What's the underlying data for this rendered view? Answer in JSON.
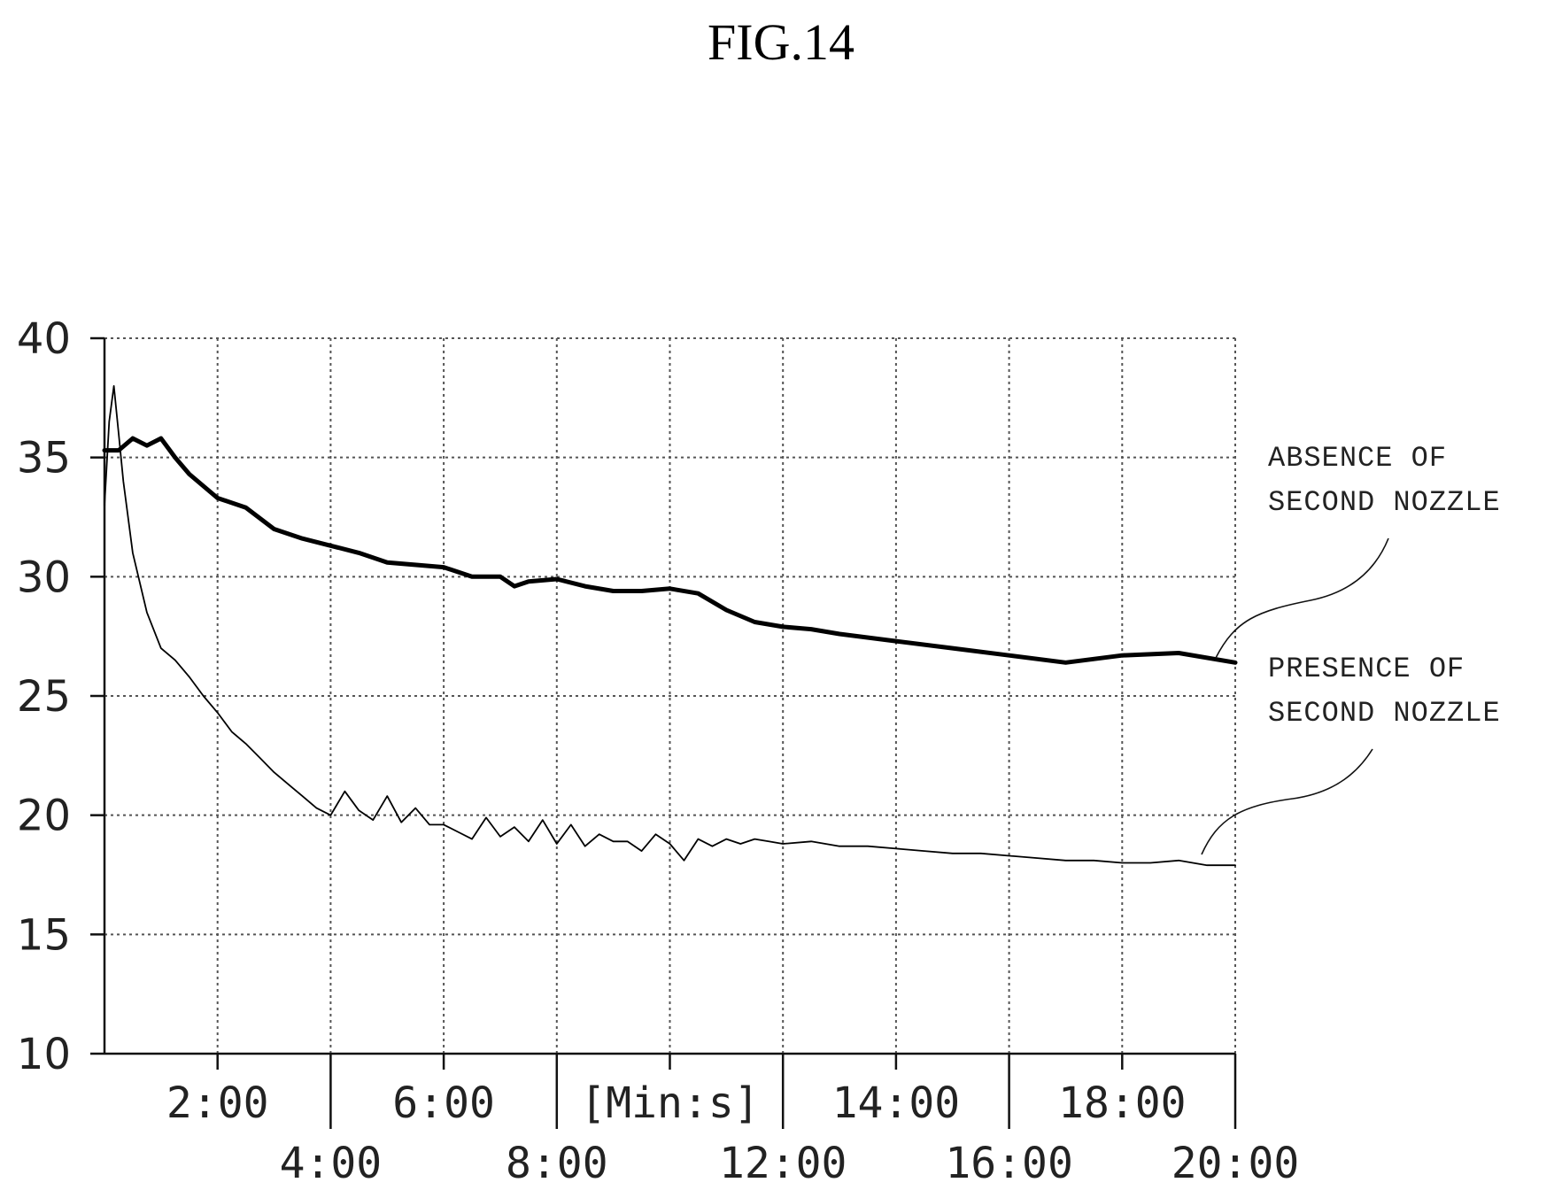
{
  "figure_label": "FIG.14",
  "chart_data": {
    "type": "line",
    "title": "",
    "xlabel": "[Min:s]",
    "ylabel": "",
    "xlim_minutes": [
      0,
      20
    ],
    "ylim": [
      10,
      40
    ],
    "y_ticks": [
      "10",
      "15",
      "20",
      "25",
      "30",
      "35",
      "40"
    ],
    "x_ticks_upper": [
      "2:00",
      "6:00",
      "[Min:s]",
      "14:00",
      "18:00"
    ],
    "x_ticks_lower": [
      "4:00",
      "8:00",
      "12:00",
      "16:00",
      "20:00"
    ],
    "grid": true,
    "annotations": [
      {
        "line1": "ABSENCE OF",
        "line2": "SECOND NOZZLE",
        "series": 0
      },
      {
        "line1": "PRESENCE OF",
        "line2": "SECOND NOZZLE",
        "series": 1
      }
    ],
    "series": [
      {
        "name": "",
        "color": "#000000",
        "x": [
          "0:00",
          "0:15",
          "0:30",
          "0:45",
          "1:00",
          "1:15",
          "1:30",
          "2:00",
          "2:30",
          "3:00",
          "3:30",
          "4:00",
          "4:30",
          "5:00",
          "6:00",
          "6:30",
          "7:00",
          "7:15",
          "7:30",
          "8:00",
          "8:30",
          "9:00",
          "9:30",
          "10:00",
          "10:30",
          "11:00",
          "11:30",
          "12:00",
          "12:30",
          "13:00",
          "14:00",
          "15:00",
          "16:00",
          "17:00",
          "18:00",
          "19:00",
          "20:00"
        ],
        "values": [
          35.3,
          35.3,
          35.8,
          35.5,
          35.8,
          35.0,
          34.3,
          33.3,
          32.9,
          32.0,
          31.6,
          31.3,
          31.0,
          30.6,
          30.4,
          30.0,
          30.0,
          29.6,
          29.8,
          29.9,
          29.6,
          29.4,
          29.4,
          29.5,
          29.3,
          28.6,
          28.1,
          27.9,
          27.8,
          27.6,
          27.3,
          27.0,
          26.7,
          26.4,
          26.7,
          26.8,
          26.4
        ]
      },
      {
        "name": "",
        "color": "#000000",
        "x": [
          "0:00",
          "0:05",
          "0:10",
          "0:15",
          "0:20",
          "0:25",
          "0:30",
          "0:45",
          "1:00",
          "1:15",
          "1:30",
          "1:45",
          "2:00",
          "2:15",
          "2:30",
          "2:45",
          "3:00",
          "3:15",
          "3:30",
          "3:45",
          "4:00",
          "4:15",
          "4:30",
          "4:45",
          "5:00",
          "5:15",
          "5:30",
          "5:45",
          "6:00",
          "6:15",
          "6:30",
          "6:45",
          "7:00",
          "7:15",
          "7:30",
          "7:45",
          "8:00",
          "8:15",
          "8:30",
          "8:45",
          "9:00",
          "9:15",
          "9:30",
          "9:45",
          "10:00",
          "10:15",
          "10:30",
          "10:45",
          "11:00",
          "11:15",
          "11:30",
          "11:45",
          "12:00",
          "12:30",
          "13:00",
          "13:30",
          "14:00",
          "14:30",
          "15:00",
          "15:30",
          "16:00",
          "16:30",
          "17:00",
          "17:30",
          "18:00",
          "18:30",
          "19:00",
          "19:30",
          "20:00"
        ],
        "values": [
          33.0,
          36.5,
          38.0,
          36.0,
          34.0,
          32.5,
          31.0,
          28.5,
          27.0,
          26.5,
          25.8,
          25.0,
          24.3,
          23.5,
          23.0,
          22.4,
          21.8,
          21.3,
          20.8,
          20.3,
          20.0,
          21.0,
          20.2,
          19.8,
          20.8,
          19.7,
          20.3,
          19.6,
          19.6,
          19.3,
          19.0,
          19.9,
          19.1,
          19.5,
          18.9,
          19.8,
          18.8,
          19.6,
          18.7,
          19.2,
          18.9,
          18.9,
          18.5,
          19.2,
          18.8,
          18.1,
          19.0,
          18.7,
          19.0,
          18.8,
          19.0,
          18.9,
          18.8,
          18.9,
          18.7,
          18.7,
          18.6,
          18.5,
          18.4,
          18.4,
          18.3,
          18.2,
          18.1,
          18.1,
          18.0,
          18.0,
          18.1,
          17.9,
          17.9
        ]
      }
    ]
  }
}
